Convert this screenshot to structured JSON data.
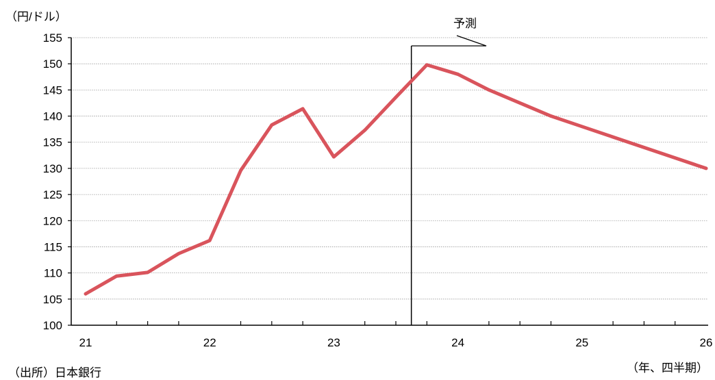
{
  "chart_data": {
    "type": "line",
    "y_unit_label": "（円/ドル）",
    "x_unit_label": "（年、四半期）",
    "source": "（出所）日本銀行",
    "forecast_label": "予測",
    "xlim": [
      0,
      20
    ],
    "ylim": [
      100,
      155
    ],
    "y_ticks": [
      100,
      105,
      110,
      115,
      120,
      125,
      130,
      135,
      140,
      145,
      150,
      155
    ],
    "x_tick_labels": [
      {
        "x": 0,
        "label": "21"
      },
      {
        "x": 4,
        "label": "22"
      },
      {
        "x": 8,
        "label": "23"
      },
      {
        "x": 12,
        "label": "24"
      },
      {
        "x": 16,
        "label": "25"
      },
      {
        "x": 20,
        "label": "26"
      }
    ],
    "x_minor_ticks": [
      1,
      2,
      3,
      5,
      6,
      7,
      9,
      10,
      11,
      13,
      14,
      15,
      17,
      18,
      19
    ],
    "forecast_start_x": 10.5,
    "grid": true,
    "line_color": "#d9545c",
    "series": [
      {
        "x": [
          0,
          1,
          2,
          3,
          4,
          5,
          6,
          7,
          8,
          9,
          10,
          11,
          12,
          13,
          14,
          15,
          16,
          17,
          18,
          19,
          20
        ],
        "values": [
          106.0,
          109.4,
          110.1,
          113.7,
          116.2,
          129.6,
          138.3,
          141.4,
          132.2,
          137.3,
          143.6,
          149.8,
          148.0,
          145.0,
          142.5,
          140.0,
          138.0,
          136.0,
          134.0,
          132.0,
          130.0
        ]
      }
    ]
  }
}
